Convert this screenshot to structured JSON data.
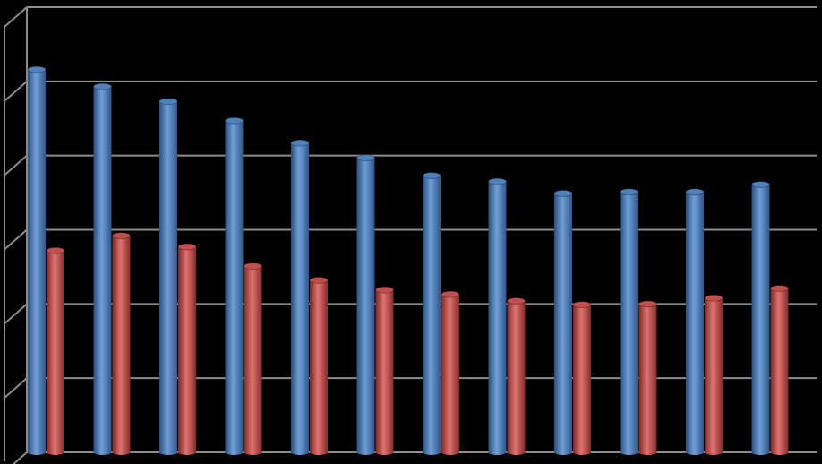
{
  "chart_data": {
    "type": "bar3d",
    "categories": [
      null,
      null,
      null,
      null,
      null,
      null,
      null,
      null,
      null,
      null,
      null,
      null
    ],
    "series": [
      {
        "color": "#4f81bd",
        "values": [
          5.16,
          4.93,
          4.73,
          4.47,
          4.17,
          3.97,
          3.73,
          3.65,
          3.49,
          3.51,
          3.51,
          3.61
        ]
      },
      {
        "color": "#c0504d",
        "values": [
          2.72,
          2.92,
          2.77,
          2.51,
          2.32,
          2.19,
          2.13,
          2.04,
          1.99,
          2.0,
          2.08,
          2.21
        ]
      }
    ],
    "ylim": [
      0,
      6
    ],
    "yticks": [
      0,
      1,
      2,
      3,
      4,
      5,
      6
    ],
    "grid": true,
    "show_tick_labels": false
  }
}
